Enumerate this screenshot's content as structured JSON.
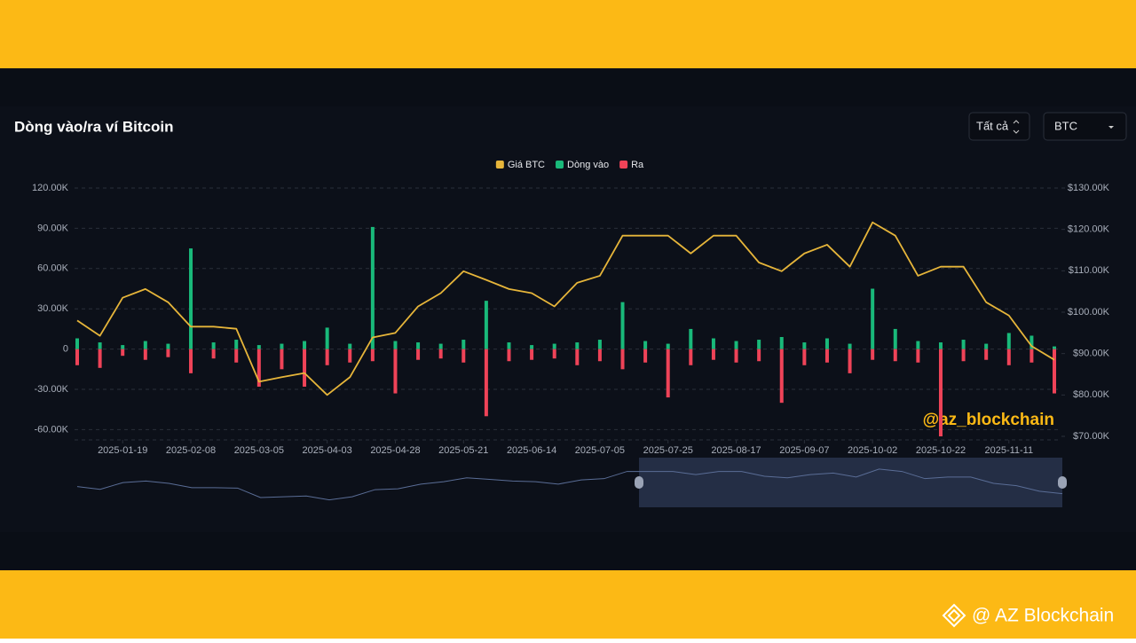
{
  "header": {
    "title": "Dòng vào/ra ví Bitcoin",
    "buttons": [
      "Tất cả",
      "BTC"
    ]
  },
  "chart_data": {
    "type": "combo",
    "x": [
      "2025-01-07",
      "2025-01-13",
      "2025-01-19",
      "2025-01-26",
      "2025-02-02",
      "2025-02-08",
      "2025-02-16",
      "2025-02-24",
      "2025-03-05",
      "2025-03-15",
      "2025-03-24",
      "2025-04-03",
      "2025-04-11",
      "2025-04-20",
      "2025-04-28",
      "2025-05-06",
      "2025-05-14",
      "2025-05-21",
      "2025-05-29",
      "2025-06-06",
      "2025-06-14",
      "2025-06-21",
      "2025-06-28",
      "2025-07-05",
      "2025-07-12",
      "2025-07-18",
      "2025-07-25",
      "2025-08-02",
      "2025-08-09",
      "2025-08-17",
      "2025-08-24",
      "2025-08-31",
      "2025-09-07",
      "2025-09-15",
      "2025-09-24",
      "2025-10-02",
      "2025-10-09",
      "2025-10-15",
      "2025-10-22",
      "2025-10-29",
      "2025-11-04",
      "2025-11-11",
      "2025-11-17",
      "2025-11-23"
    ],
    "xticks": [
      "2025-01-19",
      "2025-02-08",
      "2025-03-05",
      "2025-04-03",
      "2025-04-28",
      "2025-05-21",
      "2025-06-14",
      "2025-07-05",
      "2025-07-25",
      "2025-08-17",
      "2025-09-07",
      "2025-10-02",
      "2025-10-22",
      "2025-11-11"
    ],
    "series": [
      {
        "name": "Giá BTC",
        "type": "line",
        "axis": "y2",
        "color": "#e6b53a",
        "values": [
          98000,
          94300,
          103500,
          105600,
          102400,
          96500,
          96500,
          96000,
          83200,
          84300,
          85300,
          80000,
          84300,
          93900,
          95000,
          101400,
          104600,
          109900,
          107800,
          105600,
          104600,
          101400,
          107100,
          108800,
          118500,
          118500,
          118500,
          114200,
          118500,
          118500,
          112000,
          109900,
          114200,
          116300,
          111000,
          121700,
          118500,
          108800,
          111000,
          111000,
          102400,
          99200,
          91800,
          88500
        ]
      },
      {
        "name": "Dòng vào",
        "type": "bar",
        "color": "#19b97a",
        "values": [
          8000,
          5000,
          3000,
          6000,
          4000,
          75000,
          5000,
          7000,
          3000,
          4000,
          6000,
          16000,
          4000,
          91000,
          6000,
          5000,
          4000,
          7000,
          36000,
          5000,
          3000,
          4000,
          5000,
          7000,
          35000,
          6000,
          4000,
          15000,
          8000,
          6000,
          7000,
          9000,
          5000,
          8000,
          4000,
          45000,
          15000,
          6000,
          5000,
          7000,
          4000,
          12000,
          10000,
          2000
        ]
      },
      {
        "name": "Ra",
        "type": "bar",
        "color": "#ef4358",
        "values": [
          -12000,
          -14000,
          -5000,
          -8000,
          -6000,
          -18000,
          -7000,
          -10000,
          -28000,
          -15000,
          -28000,
          -12000,
          -10000,
          -9000,
          -33000,
          -8000,
          -7000,
          -10000,
          -50000,
          -9000,
          -8000,
          -7000,
          -12000,
          -9000,
          -15000,
          -10000,
          -36000,
          -12000,
          -8000,
          -10000,
          -9000,
          -40000,
          -12000,
          -10000,
          -18000,
          -8000,
          -9000,
          -10000,
          -65000,
          -9000,
          -8000,
          -12000,
          -10000,
          -33000
        ]
      }
    ],
    "ylim": [
      -65000,
      120000
    ],
    "yticks": [
      {
        "value": 120000,
        "label": "120.00K"
      },
      {
        "value": 90000,
        "label": "90.00K"
      },
      {
        "value": 60000,
        "label": "60.00K"
      },
      {
        "value": 30000,
        "label": "30.00K"
      },
      0,
      {
        "value": -30000,
        "label": "-30.00K"
      },
      {
        "value": -60000,
        "label": "-60.00K"
      }
    ],
    "y2lim": [
      70000,
      130000
    ],
    "y2ticks": [
      {
        "value": 130000,
        "label": "$130.00K"
      },
      {
        "value": 120000,
        "label": "$120.00K"
      },
      {
        "value": 110000,
        "label": "$110.00K"
      },
      {
        "value": 100000,
        "label": "$100.00K"
      },
      {
        "value": 90000,
        "label": "$90.00K"
      },
      {
        "value": 80000,
        "label": "$80.00K"
      },
      {
        "value": 70000,
        "label": "$70.00K"
      }
    ],
    "grid": true,
    "legend": "top"
  },
  "watermark": "@az_blockchain",
  "footer": {
    "brand": "@ AZ Blockchain"
  }
}
